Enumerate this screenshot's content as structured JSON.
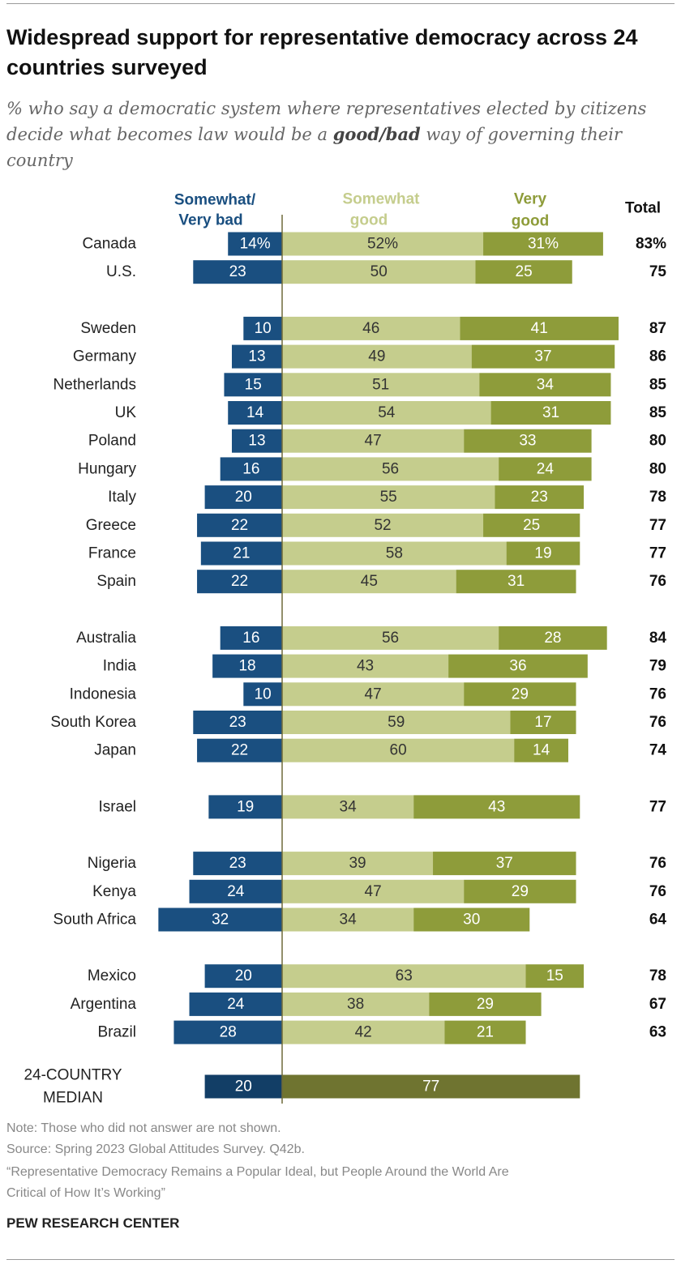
{
  "title": "Widespread support for representative democracy across 24 countries surveyed",
  "subtitle_parts": {
    "before": "% who say a democratic system where representatives elected by citizens decide what becomes law would be a ",
    "emphasis": "good/bad",
    "after": " way of governing their country"
  },
  "colors": {
    "bad": "#1a4f80",
    "bad_median": "#123e66",
    "somewhat_good": "#c5cd8d",
    "very_good": "#8e9c3a",
    "good_median": "#6f7430",
    "axis": "#6e6a3a"
  },
  "chart_data": {
    "type": "bar",
    "orientation": "horizontal-diverging",
    "headers": {
      "bad": [
        "Somewhat/",
        "Very bad"
      ],
      "somewhat_good": [
        "Somewhat",
        "good"
      ],
      "very_good": [
        "Very",
        "good"
      ],
      "total": "Total"
    },
    "series": [
      {
        "name": "Somewhat/Very bad"
      },
      {
        "name": "Somewhat good"
      },
      {
        "name": "Very good"
      }
    ],
    "rows": [
      {
        "country": "Canada",
        "bad": 14,
        "somewhat_good": 52,
        "very_good": 31,
        "total": 83,
        "bad_label": "14%",
        "sg_label": "52%",
        "vg_label": "31%",
        "total_label": "83%"
      },
      {
        "country": "U.S.",
        "bad": 23,
        "somewhat_good": 50,
        "very_good": 25,
        "total": 75
      },
      {
        "country": "Sweden",
        "bad": 10,
        "somewhat_good": 46,
        "very_good": 41,
        "total": 87
      },
      {
        "country": "Germany",
        "bad": 13,
        "somewhat_good": 49,
        "very_good": 37,
        "total": 86
      },
      {
        "country": "Netherlands",
        "bad": 15,
        "somewhat_good": 51,
        "very_good": 34,
        "total": 85
      },
      {
        "country": "UK",
        "bad": 14,
        "somewhat_good": 54,
        "very_good": 31,
        "total": 85
      },
      {
        "country": "Poland",
        "bad": 13,
        "somewhat_good": 47,
        "very_good": 33,
        "total": 80
      },
      {
        "country": "Hungary",
        "bad": 16,
        "somewhat_good": 56,
        "very_good": 24,
        "total": 80
      },
      {
        "country": "Italy",
        "bad": 20,
        "somewhat_good": 55,
        "very_good": 23,
        "total": 78
      },
      {
        "country": "Greece",
        "bad": 22,
        "somewhat_good": 52,
        "very_good": 25,
        "total": 77
      },
      {
        "country": "France",
        "bad": 21,
        "somewhat_good": 58,
        "very_good": 19,
        "total": 77
      },
      {
        "country": "Spain",
        "bad": 22,
        "somewhat_good": 45,
        "very_good": 31,
        "total": 76
      },
      {
        "country": "Australia",
        "bad": 16,
        "somewhat_good": 56,
        "very_good": 28,
        "total": 84
      },
      {
        "country": "India",
        "bad": 18,
        "somewhat_good": 43,
        "very_good": 36,
        "total": 79
      },
      {
        "country": "Indonesia",
        "bad": 10,
        "somewhat_good": 47,
        "very_good": 29,
        "total": 76
      },
      {
        "country": "South Korea",
        "bad": 23,
        "somewhat_good": 59,
        "very_good": 17,
        "total": 76
      },
      {
        "country": "Japan",
        "bad": 22,
        "somewhat_good": 60,
        "very_good": 14,
        "total": 74
      },
      {
        "country": "Israel",
        "bad": 19,
        "somewhat_good": 34,
        "very_good": 43,
        "total": 77
      },
      {
        "country": "Nigeria",
        "bad": 23,
        "somewhat_good": 39,
        "very_good": 37,
        "total": 76
      },
      {
        "country": "Kenya",
        "bad": 24,
        "somewhat_good": 47,
        "very_good": 29,
        "total": 76
      },
      {
        "country": "South Africa",
        "bad": 32,
        "somewhat_good": 34,
        "very_good": 30,
        "total": 64
      },
      {
        "country": "Mexico",
        "bad": 20,
        "somewhat_good": 63,
        "very_good": 15,
        "total": 78
      },
      {
        "country": "Argentina",
        "bad": 24,
        "somewhat_good": 38,
        "very_good": 29,
        "total": 67
      },
      {
        "country": "Brazil",
        "bad": 28,
        "somewhat_good": 42,
        "very_good": 21,
        "total": 63
      }
    ],
    "median": {
      "label": [
        "24-COUNTRY",
        "MEDIAN"
      ],
      "bad": 20,
      "good": 77
    }
  },
  "footer": {
    "note": "Note: Those who did not answer are not shown.",
    "source": "Source: Spring 2023 Global Attitudes Survey. Q42b.",
    "report_line1": "“Representative Democracy Remains a Popular Ideal, but People Around the World Are",
    "report_line2": "Critical of How It’s Working”",
    "credit": "PEW RESEARCH CENTER"
  }
}
